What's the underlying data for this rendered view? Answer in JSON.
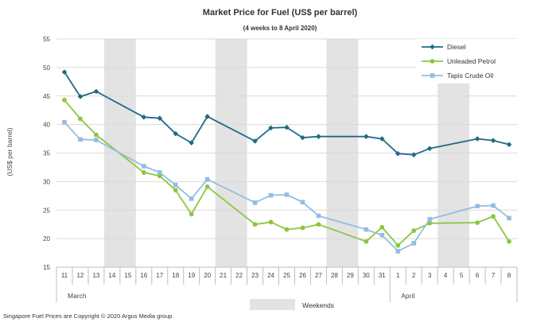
{
  "chart_data": {
    "type": "line",
    "title": "Market Price for Fuel (US$  per barrel)",
    "subtitle": "(4 weeks to 8 April 2020)",
    "ylabel": "(US$ per barrel)",
    "xlabel": "",
    "ylim": [
      15,
      55
    ],
    "yticks": [
      15,
      20,
      25,
      30,
      35,
      40,
      45,
      50,
      55
    ],
    "grid": true,
    "legend_position": "top-right",
    "categories": [
      "11",
      "12",
      "13",
      "14",
      "15",
      "16",
      "17",
      "18",
      "19",
      "20",
      "21",
      "22",
      "23",
      "24",
      "25",
      "26",
      "27",
      "28",
      "29",
      "30",
      "31",
      "1",
      "2",
      "3",
      "4",
      "5",
      "6",
      "7",
      "8"
    ],
    "month_labels": [
      {
        "label": "March",
        "start_index": 0
      },
      {
        "label": "April",
        "start_index": 21
      }
    ],
    "weekends": [
      [
        3,
        4
      ],
      [
        10,
        11
      ],
      [
        17,
        18
      ],
      [
        24,
        25
      ]
    ],
    "weekend_label": "Weekends",
    "series": [
      {
        "name": "Diesel",
        "color": "#1f6b84",
        "marker": "diamond",
        "values": [
          49.2,
          44.9,
          45.8,
          null,
          null,
          41.3,
          41.1,
          38.4,
          36.8,
          41.4,
          null,
          null,
          37.1,
          39.4,
          39.5,
          37.7,
          37.9,
          null,
          null,
          37.9,
          37.5,
          34.9,
          34.7,
          35.8,
          null,
          null,
          37.5,
          37.2,
          36.5
        ]
      },
      {
        "name": "Unleaded Petrol",
        "color": "#8cc63f",
        "marker": "circle",
        "values": [
          44.3,
          41.0,
          38.2,
          null,
          null,
          31.6,
          31.0,
          28.5,
          24.3,
          29.1,
          null,
          null,
          22.5,
          22.9,
          21.6,
          21.9,
          22.5,
          null,
          null,
          19.5,
          22.0,
          18.8,
          21.4,
          22.7,
          null,
          null,
          22.8,
          23.9,
          19.5
        ]
      },
      {
        "name": "Tapis Crude Oil",
        "color": "#93bde0",
        "marker": "square",
        "values": [
          40.4,
          37.4,
          37.3,
          null,
          null,
          32.7,
          31.6,
          29.4,
          27.0,
          30.4,
          null,
          null,
          26.3,
          27.6,
          27.7,
          26.4,
          24.0,
          null,
          null,
          21.6,
          20.6,
          17.8,
          19.2,
          23.4,
          null,
          null,
          25.7,
          25.8,
          23.6
        ]
      }
    ],
    "footer": "Singapore  Fuel Prices are Copyright © 2020  Argus Media group."
  }
}
